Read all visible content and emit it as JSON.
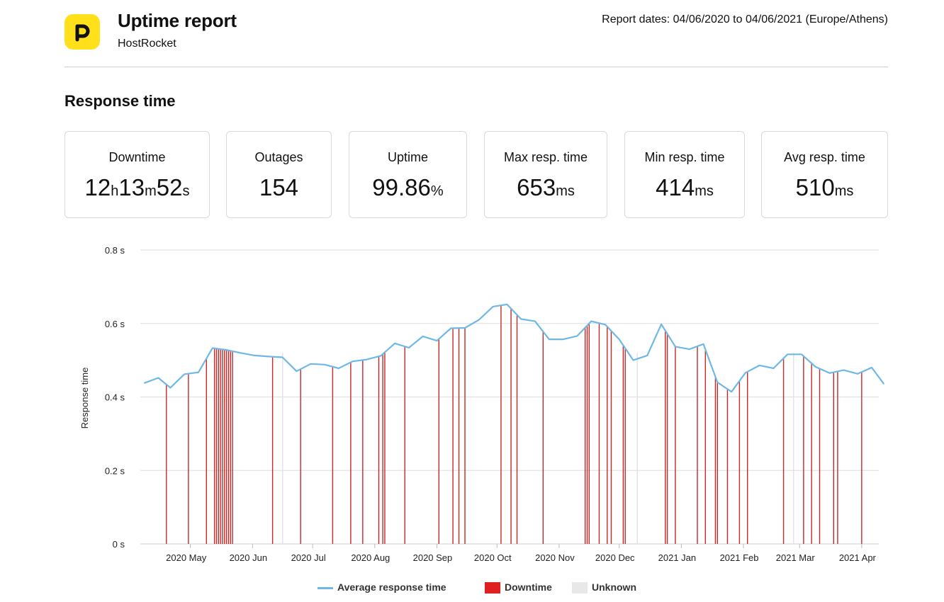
{
  "header": {
    "title": "Uptime report",
    "subtitle": "HostRocket",
    "dates": "Report dates: 04/06/2020 to 04/06/2021 (Europe/Athens)",
    "logo_color": "#ffe01b"
  },
  "section_title": "Response time",
  "stats": [
    {
      "label": "Downtime",
      "parts": [
        {
          "v": "12",
          "u": "h"
        },
        {
          "v": "13",
          "u": "m"
        },
        {
          "v": "52",
          "u": "s"
        }
      ]
    },
    {
      "label": "Outages",
      "parts": [
        {
          "v": "154",
          "u": ""
        }
      ]
    },
    {
      "label": "Uptime",
      "parts": [
        {
          "v": "99.86",
          "u": "%"
        }
      ]
    },
    {
      "label": "Max resp. time",
      "parts": [
        {
          "v": "653",
          "u": "ms"
        }
      ]
    },
    {
      "label": "Min resp. time",
      "parts": [
        {
          "v": "414",
          "u": "ms"
        }
      ]
    },
    {
      "label": "Avg resp. time",
      "parts": [
        {
          "v": "510",
          "u": "ms"
        }
      ]
    }
  ],
  "chart_data": {
    "type": "line",
    "ylabel": "Response time",
    "xlabel": "",
    "ylim": [
      0,
      0.8
    ],
    "y_ticks": [
      "0 s",
      "0.2 s",
      "0.4 s",
      "0.6 s",
      "0.8 s"
    ],
    "x_range": [
      "2020-04-06",
      "2021-04-06"
    ],
    "x_ticks": [
      {
        "label": "2020 May",
        "date": "2020-05-01"
      },
      {
        "label": "2020 Jun",
        "date": "2020-06-01"
      },
      {
        "label": "2020 Jul",
        "date": "2020-07-01"
      },
      {
        "label": "2020 Aug",
        "date": "2020-08-01"
      },
      {
        "label": "2020 Sep",
        "date": "2020-09-01"
      },
      {
        "label": "2020 Oct",
        "date": "2020-10-01"
      },
      {
        "label": "2020 Nov",
        "date": "2020-11-01"
      },
      {
        "label": "2020 Dec",
        "date": "2020-12-01"
      },
      {
        "label": "2021 Jan",
        "date": "2021-01-01"
      },
      {
        "label": "2021 Feb",
        "date": "2021-02-01"
      },
      {
        "label": "2021 Mar",
        "date": "2021-03-01"
      },
      {
        "label": "2021 Apr",
        "date": "2021-04-01"
      }
    ],
    "grid": true,
    "legend_position": "bottom",
    "series": [
      {
        "name": "Average response time",
        "color": "#6fb8e6",
        "points": [
          [
            "2020-04-08",
            0.438
          ],
          [
            "2020-04-15",
            0.452
          ],
          [
            "2020-04-21",
            0.425
          ],
          [
            "2020-04-28",
            0.462
          ],
          [
            "2020-05-05",
            0.467
          ],
          [
            "2020-05-12",
            0.533
          ],
          [
            "2020-05-19",
            0.528
          ],
          [
            "2020-05-26",
            0.52
          ],
          [
            "2020-06-02",
            0.513
          ],
          [
            "2020-06-09",
            0.51
          ],
          [
            "2020-06-16",
            0.508
          ],
          [
            "2020-06-23",
            0.47
          ],
          [
            "2020-06-30",
            0.49
          ],
          [
            "2020-07-07",
            0.488
          ],
          [
            "2020-07-14",
            0.478
          ],
          [
            "2020-07-21",
            0.497
          ],
          [
            "2020-07-28",
            0.502
          ],
          [
            "2020-08-04",
            0.512
          ],
          [
            "2020-08-11",
            0.546
          ],
          [
            "2020-08-18",
            0.534
          ],
          [
            "2020-08-25",
            0.565
          ],
          [
            "2020-09-01",
            0.553
          ],
          [
            "2020-09-08",
            0.587
          ],
          [
            "2020-09-15",
            0.588
          ],
          [
            "2020-09-22",
            0.61
          ],
          [
            "2020-09-29",
            0.646
          ],
          [
            "2020-10-06",
            0.652
          ],
          [
            "2020-10-13",
            0.612
          ],
          [
            "2020-10-20",
            0.606
          ],
          [
            "2020-10-27",
            0.557
          ],
          [
            "2020-11-03",
            0.557
          ],
          [
            "2020-11-10",
            0.566
          ],
          [
            "2020-11-17",
            0.606
          ],
          [
            "2020-11-24",
            0.597
          ],
          [
            "2020-12-01",
            0.557
          ],
          [
            "2020-12-08",
            0.5
          ],
          [
            "2020-12-15",
            0.513
          ],
          [
            "2020-12-22",
            0.598
          ],
          [
            "2020-12-29",
            0.537
          ],
          [
            "2021-01-05",
            0.53
          ],
          [
            "2021-01-12",
            0.544
          ],
          [
            "2021-01-19",
            0.44
          ],
          [
            "2021-01-26",
            0.414
          ],
          [
            "2021-02-02",
            0.466
          ],
          [
            "2021-02-09",
            0.486
          ],
          [
            "2021-02-16",
            0.478
          ],
          [
            "2021-02-23",
            0.516
          ],
          [
            "2021-03-02",
            0.516
          ],
          [
            "2021-03-09",
            0.482
          ],
          [
            "2021-03-16",
            0.465
          ],
          [
            "2021-03-23",
            0.473
          ],
          [
            "2021-03-30",
            0.463
          ],
          [
            "2021-04-06",
            0.48
          ],
          [
            "2021-04-12",
            0.436
          ]
        ]
      }
    ],
    "downtime_color": "#e02020",
    "unknown_color": "#e8e8e8",
    "downtime_dates": [
      "2020-04-19",
      "2020-04-30",
      "2020-05-09",
      "2020-05-13",
      "2020-05-14",
      "2020-05-15",
      "2020-05-16",
      "2020-05-17",
      "2020-05-18",
      "2020-05-19",
      "2020-05-20",
      "2020-05-21",
      "2020-05-22",
      "2020-06-11",
      "2020-06-25",
      "2020-07-11",
      "2020-07-20",
      "2020-07-26",
      "2020-08-03",
      "2020-08-05",
      "2020-08-06",
      "2020-08-16",
      "2020-09-02",
      "2020-09-09",
      "2020-09-12",
      "2020-09-15",
      "2020-10-03",
      "2020-10-08",
      "2020-10-11",
      "2020-10-24",
      "2020-11-14",
      "2020-11-15",
      "2020-11-16",
      "2020-11-21",
      "2020-11-25",
      "2020-11-27",
      "2020-12-03",
      "2020-12-04",
      "2020-12-24",
      "2020-12-25",
      "2020-12-29",
      "2021-01-09",
      "2021-01-13",
      "2021-01-18",
      "2021-01-19",
      "2021-01-24",
      "2021-01-30",
      "2021-02-03",
      "2021-02-21",
      "2021-03-03",
      "2021-03-07",
      "2021-03-11",
      "2021-03-18",
      "2021-03-20",
      "2021-04-01"
    ],
    "unknown_dates": [
      "2020-06-16",
      "2020-12-10",
      "2021-02-26"
    ]
  },
  "legend": {
    "line": "Average response time",
    "downtime": "Downtime",
    "unknown": "Unknown"
  }
}
